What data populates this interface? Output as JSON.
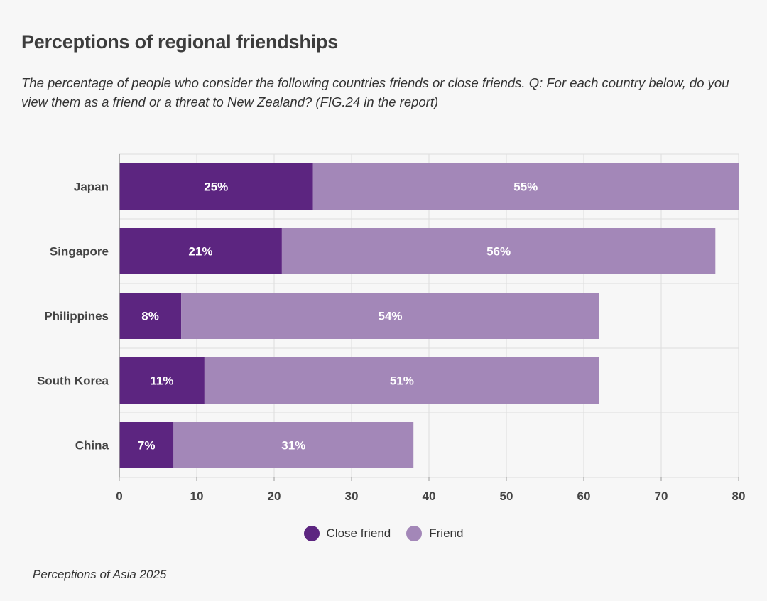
{
  "title": "Perceptions of regional friendships",
  "subtitle": "The percentage of people who consider the following countries friends or close friends. Q: For each country below, do you view them as a friend or a threat to New Zealand? (FIG.24 in the report)",
  "source": "Perceptions of Asia 2025",
  "colors": {
    "close_friend": "#5c2580",
    "friend": "#a387b8",
    "grid": "#dddddd",
    "axis": "#999999",
    "label_text": "#ffffff"
  },
  "chart_data": {
    "type": "bar",
    "orientation": "horizontal",
    "stacked": true,
    "categories": [
      "Japan",
      "Singapore",
      "Philippines",
      "South Korea",
      "China"
    ],
    "series": [
      {
        "name": "Close friend",
        "values": [
          25,
          21,
          8,
          11,
          7
        ],
        "labels": [
          "25%",
          "21%",
          "8%",
          "11%",
          "7%"
        ]
      },
      {
        "name": "Friend",
        "values": [
          55,
          56,
          54,
          51,
          31
        ],
        "labels": [
          "55%",
          "56%",
          "54%",
          "51%",
          "31%"
        ]
      }
    ],
    "xlim": [
      0,
      80
    ],
    "xticks": [
      0,
      10,
      20,
      30,
      40,
      50,
      60,
      70,
      80
    ],
    "xlabel": "",
    "ylabel": "",
    "grid": true,
    "legend": "bottom-center"
  }
}
